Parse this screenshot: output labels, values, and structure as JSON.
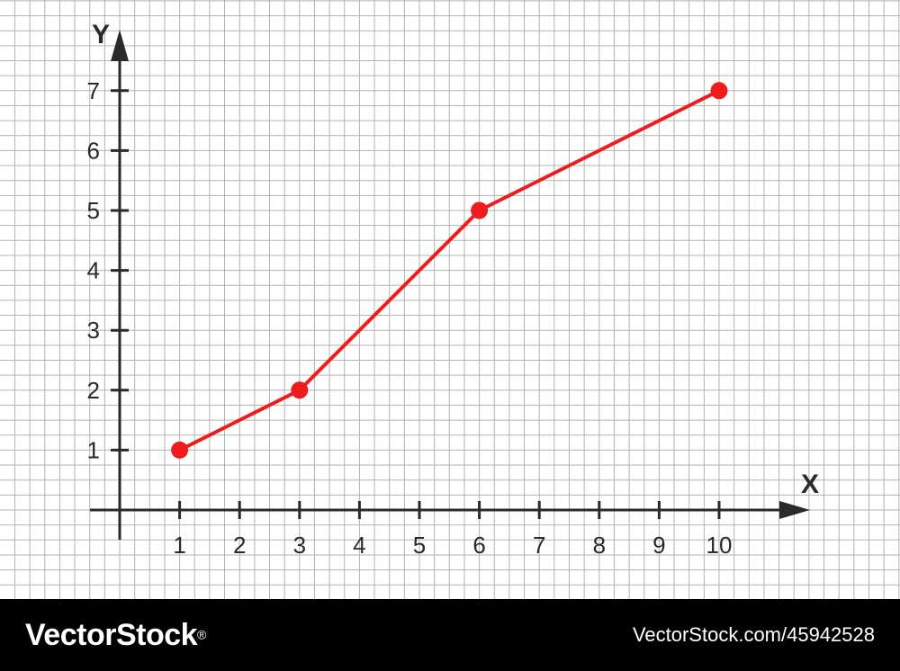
{
  "colors": {
    "line": "#ee1c1c",
    "axis": "#2a2a2a",
    "grid": "#b3b3b3",
    "background": "#ffffff",
    "footer_bg": "#000000",
    "footer_text": "#ffffff"
  },
  "chart_data": {
    "type": "line",
    "title": "",
    "xlabel": "X",
    "ylabel": "Y",
    "xlim": [
      0,
      10
    ],
    "ylim": [
      0,
      7
    ],
    "grid": true,
    "x_ticks": [
      "1",
      "2",
      "3",
      "4",
      "5",
      "6",
      "7",
      "8",
      "9",
      "10"
    ],
    "y_ticks": [
      "1",
      "2",
      "3",
      "4",
      "5",
      "6",
      "7"
    ],
    "series": [
      {
        "x": [
          1,
          3,
          6,
          10
        ],
        "y": [
          1,
          2,
          5,
          7
        ],
        "markers": true
      }
    ]
  },
  "footer": {
    "brand": "VectorStock",
    "brand_mark": "®",
    "stock_id": "VectorStock.com/45942528"
  }
}
